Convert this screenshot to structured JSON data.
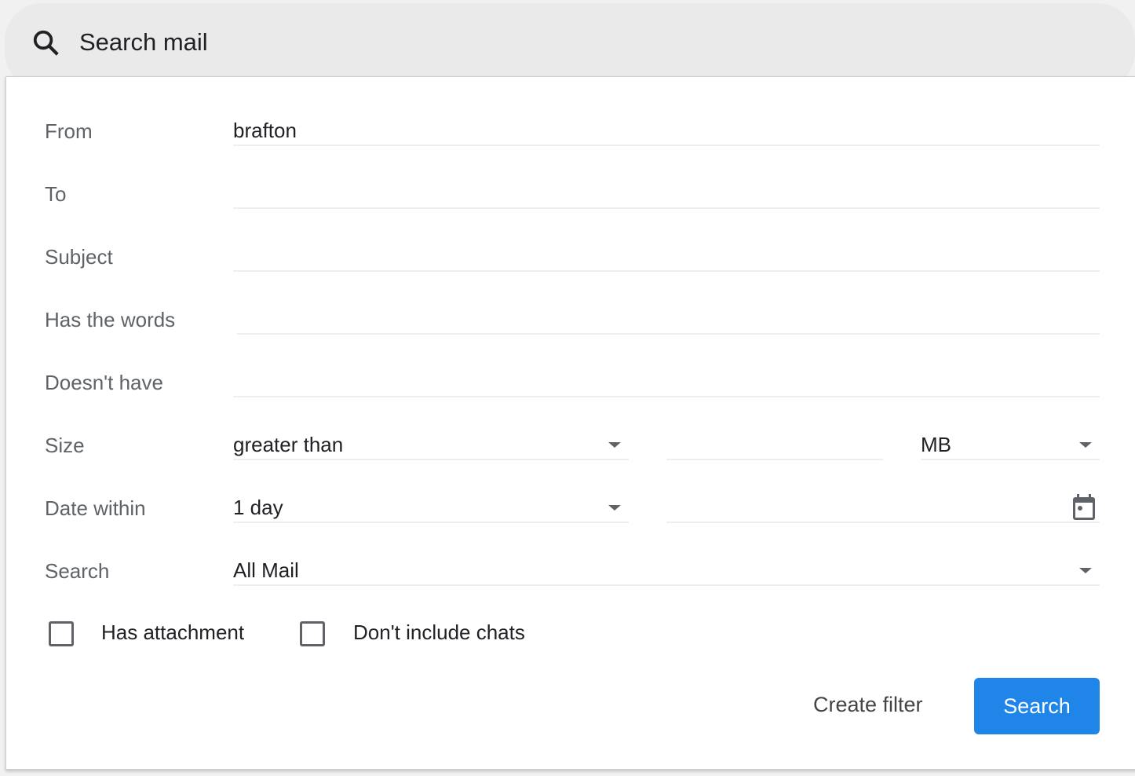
{
  "search_bar": {
    "placeholder": "Search mail",
    "icon": "search-icon"
  },
  "form": {
    "from": {
      "label": "From",
      "value": "brafton"
    },
    "to": {
      "label": "To",
      "value": ""
    },
    "subject": {
      "label": "Subject",
      "value": ""
    },
    "has_words": {
      "label": "Has the words",
      "value": ""
    },
    "doesnt_have": {
      "label": "Doesn't have",
      "value": ""
    },
    "size": {
      "label": "Size",
      "comparator": "greater than",
      "value": "",
      "unit": "MB"
    },
    "date_within": {
      "label": "Date within",
      "value": "1 day",
      "date": "",
      "icon": "calendar-icon"
    },
    "search_in": {
      "label": "Search",
      "value": "All Mail"
    },
    "has_attachment": {
      "label": "Has attachment",
      "checked": false
    },
    "no_chats": {
      "label": "Don't include chats",
      "checked": false
    }
  },
  "actions": {
    "create_filter": "Create filter",
    "search": "Search"
  },
  "colors": {
    "primary_button": "#2085e8",
    "label": "#5f6368"
  }
}
